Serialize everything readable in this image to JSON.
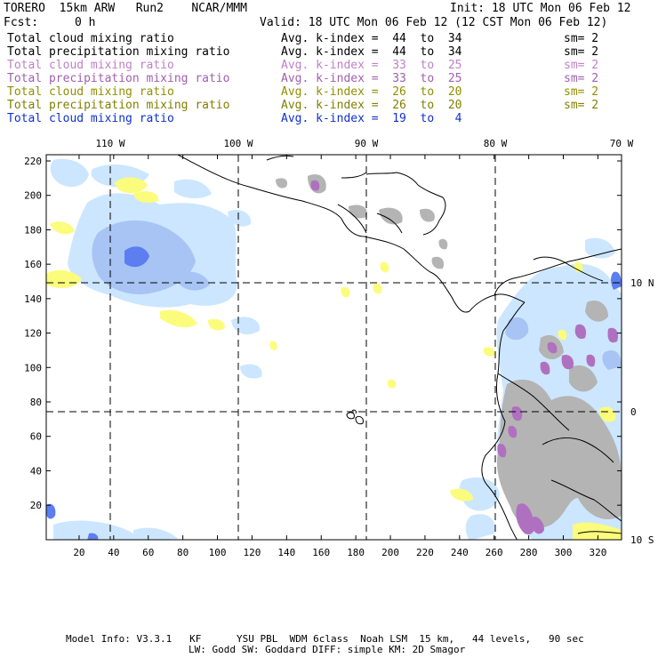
{
  "header": {
    "model": "TORERO  15km ARW   Run2    NCAR/MMM",
    "init": "Init: 18 UTC Mon 06 Feb 12",
    "fcst_label": "Fcst:",
    "fcst_value": "0 h",
    "valid": "Valid: 18 UTC Mon 06 Feb 12 (12 CST Mon 06 Feb 12)"
  },
  "legend": [
    {
      "name": "Total cloud mixing ratio",
      "kindex": "Avg. k-index =  44  to  34",
      "sm": "sm= 2",
      "color": "#000000"
    },
    {
      "name": "Total precipitation mixing ratio",
      "kindex": "Avg. k-index =  44  to  34",
      "sm": "sm= 2",
      "color": "#000000"
    },
    {
      "name": "Total cloud mixing ratio",
      "kindex": "Avg. k-index =  33  to  25",
      "sm": "sm= 2",
      "color": "#c080c8"
    },
    {
      "name": "Total precipitation mixing ratio",
      "kindex": "Avg. k-index =  33  to  25",
      "sm": "sm= 2",
      "color": "#a060b0"
    },
    {
      "name": "Total cloud mixing ratio",
      "kindex": "Avg. k-index =  26  to  20",
      "sm": "sm= 2",
      "color": "#909000"
    },
    {
      "name": "Total precipitation mixing ratio",
      "kindex": "Avg. k-index =  26  to  20",
      "sm": "sm= 2",
      "color": "#808000"
    },
    {
      "name": "Total cloud mixing ratio",
      "kindex": "Avg. k-index =  19  to   4",
      "sm": "",
      "color": "#1030d0"
    }
  ],
  "axes": {
    "top_labels": [
      "110 W",
      "100 W",
      "90 W",
      "80 W",
      "70 W"
    ],
    "left_ticks": [
      "220",
      "200",
      "180",
      "160",
      "140",
      "120",
      "100",
      "80",
      "60",
      "40",
      "20"
    ],
    "bottom_ticks": [
      "20",
      "40",
      "60",
      "80",
      "100",
      "120",
      "140",
      "160",
      "180",
      "200",
      "220",
      "240",
      "260",
      "280",
      "300",
      "320"
    ],
    "right_labels": [
      "10 N",
      "0",
      "10 S"
    ]
  },
  "footer": {
    "line1": "Model Info: V3.3.1   KF      YSU PBL  WDM 6class  Noah LSM  15 km,   44 levels,   90 sec",
    "line2": "LW: Godd SW: Goddard DIFF: simple KM: 2D Smagor"
  },
  "colors": {
    "lightblue": "#cce6ff",
    "midblue": "#a8c4f4",
    "darkblue": "#5c7ef0",
    "yellow": "#fcfc7c",
    "gray": "#b4b4b4",
    "purple": "#b070c0"
  }
}
